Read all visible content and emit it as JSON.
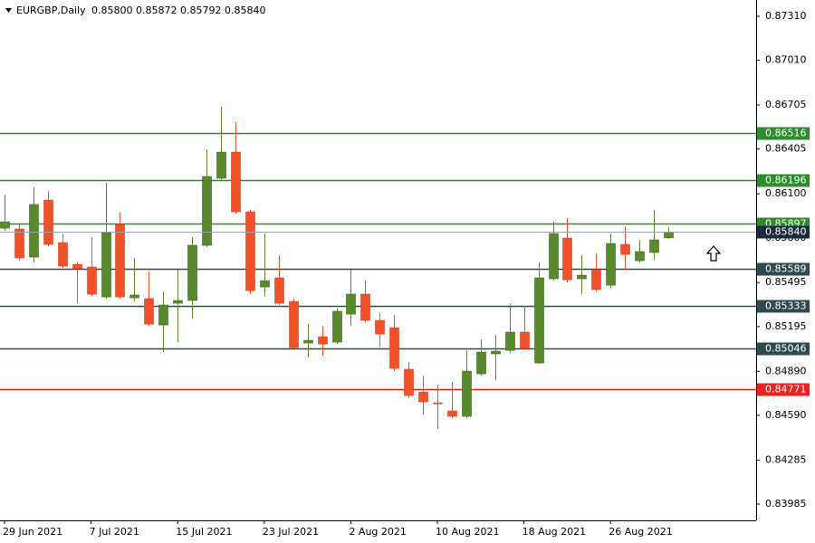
{
  "chart_data": {
    "type": "candlestick",
    "title": "EURGBP,Daily",
    "header_quote": [
      {
        "value": 0.858,
        "label": "0.85800"
      },
      {
        "value": 0.85872,
        "label": "0.85872"
      },
      {
        "value": 0.85792,
        "label": "0.85792"
      },
      {
        "value": 0.8584,
        "label": "0.85840"
      }
    ],
    "categories": [
      "29 Jun 2021",
      null,
      null,
      null,
      null,
      null,
      "7 Jul 2021",
      null,
      null,
      null,
      null,
      null,
      "15 Jul 2021",
      null,
      null,
      null,
      null,
      null,
      "23 Jul 2021",
      null,
      null,
      null,
      null,
      null,
      "2 Aug 2021",
      null,
      null,
      null,
      null,
      null,
      "10 Aug 2021",
      null,
      null,
      null,
      null,
      null,
      "18 Aug 2021",
      null,
      null,
      null,
      null,
      null,
      "26 Aug 2021",
      null,
      null,
      null,
      null
    ],
    "open": [
      0.85866,
      0.8586,
      0.85669,
      0.86057,
      0.85767,
      0.85619,
      0.85601,
      0.85397,
      0.85891,
      0.85391,
      0.85385,
      0.85206,
      0.85354,
      0.85373,
      0.85749,
      0.86206,
      0.86384,
      0.85977,
      0.85465,
      0.85527,
      0.85366,
      0.85083,
      0.85126,
      0.85089,
      0.8528,
      0.85416,
      0.85237,
      0.85187,
      0.84904,
      0.84749,
      0.84675,
      0.8462,
      0.84583,
      0.84873,
      0.85009,
      0.85033,
      0.85157,
      0.84947,
      0.85521,
      0.85798,
      0.85521,
      0.85582,
      0.85477,
      0.85755,
      0.85644,
      0.857,
      0.858
    ],
    "high": [
      0.86094,
      0.85891,
      0.86144,
      0.86119,
      0.85829,
      0.85632,
      0.85804,
      0.86175,
      0.85971,
      0.85663,
      0.8557,
      0.85434,
      0.85582,
      0.85804,
      0.86403,
      0.86693,
      0.86588,
      0.8599,
      0.85829,
      0.85681,
      0.85385,
      0.85212,
      0.852,
      0.85323,
      0.85582,
      0.85508,
      0.85292,
      0.85274,
      0.84953,
      0.8486,
      0.84799,
      0.84817,
      0.85033,
      0.85107,
      0.85138,
      0.85354,
      0.85336,
      0.85632,
      0.85909,
      0.85934,
      0.85681,
      0.85693,
      0.85829,
      0.85878,
      0.85786,
      0.8599,
      0.85872
    ],
    "low": [
      0.85848,
      0.85644,
      0.85632,
      0.85743,
      0.85595,
      0.85354,
      0.85403,
      0.85385,
      0.85385,
      0.85366,
      0.852,
      0.85021,
      0.85089,
      0.85249,
      0.85737,
      0.86187,
      0.85965,
      0.85416,
      0.85403,
      0.85342,
      0.85046,
      0.84984,
      0.84996,
      0.85076,
      0.852,
      0.85224,
      0.85058,
      0.84891,
      0.84706,
      0.84595,
      0.84496,
      0.8457,
      0.8457,
      0.8486,
      0.8483,
      0.85015,
      0.85033,
      0.84941,
      0.85508,
      0.85496,
      0.85416,
      0.85434,
      0.85459,
      0.85582,
      0.85632,
      0.8565,
      0.85792
    ],
    "close": [
      0.85909,
      0.85663,
      0.86027,
      0.85755,
      0.85607,
      0.85589,
      0.85416,
      0.85835,
      0.85397,
      0.8541,
      0.85212,
      0.85342,
      0.85373,
      0.85749,
      0.86218,
      0.86384,
      0.85977,
      0.8544,
      0.85508,
      0.85354,
      0.85052,
      0.85101,
      0.85076,
      0.85299,
      0.85416,
      0.85237,
      0.85144,
      0.8491,
      0.84725,
      0.84682,
      0.84669,
      0.84583,
      0.84891,
      0.85021,
      0.85027,
      0.85157,
      0.85046,
      0.85527,
      0.85829,
      0.85514,
      0.85545,
      0.85447,
      0.85761,
      0.85687,
      0.85706,
      0.85786,
      0.8584
    ],
    "up_color": "#5a8a2e",
    "down_color": "#f0522c",
    "ylim": [
      0.83874,
      0.87421
    ],
    "yticks": [
      {
        "value": 0.8731,
        "label": "0.87310"
      },
      {
        "value": 0.8701,
        "label": "0.87010"
      },
      {
        "value": 0.86705,
        "label": "0.86705"
      },
      {
        "value": 0.86405,
        "label": "0.86405"
      },
      {
        "value": 0.861,
        "label": "0.86100"
      },
      {
        "value": 0.858,
        "label": "0.85800"
      },
      {
        "value": 0.85495,
        "label": "0.85495"
      },
      {
        "value": 0.85195,
        "label": "0.85195"
      },
      {
        "value": 0.8489,
        "label": "0.84890"
      },
      {
        "value": 0.8459,
        "label": "0.84590"
      },
      {
        "value": 0.84285,
        "label": "0.84285"
      },
      {
        "value": 0.83985,
        "label": "0.83985"
      }
    ],
    "levels": [
      {
        "value": 0.86516,
        "label": "0.86516",
        "color": "#2e8b2e"
      },
      {
        "value": 0.86196,
        "label": "0.86196",
        "color": "#2e8b2e"
      },
      {
        "value": 0.85897,
        "label": "0.85897",
        "color": "#2e8b2e"
      },
      {
        "value": 0.85589,
        "label": "0.85589",
        "color": "#2f4a4f"
      },
      {
        "value": 0.85333,
        "label": "0.85333",
        "color": "#2f4a4f"
      },
      {
        "value": 0.85046,
        "label": "0.85046",
        "color": "#2f4a4f"
      },
      {
        "value": 0.84771,
        "label": "0.84771",
        "color": "#e8231e"
      }
    ],
    "bid": {
      "value": 0.8584,
      "label": "0.85840",
      "color": "#1c2b3c"
    }
  }
}
